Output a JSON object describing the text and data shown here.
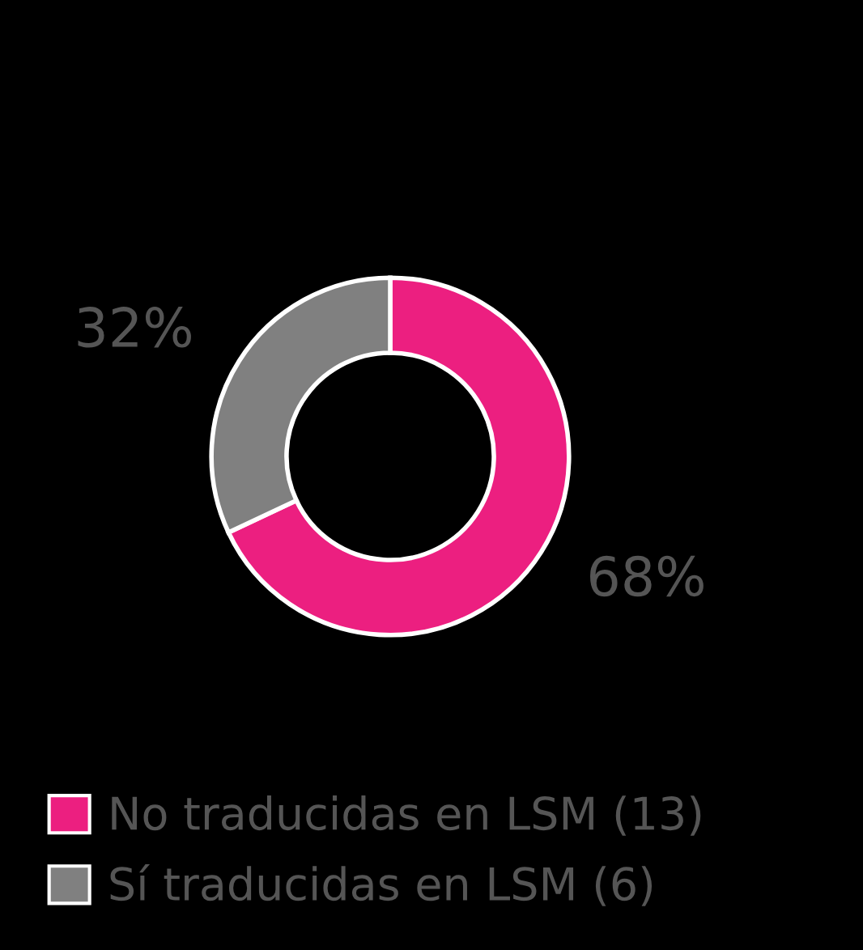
{
  "chart_data": {
    "type": "donut",
    "categories": [
      "No traducidas en LSM (13)",
      "Sí traducidas en LSM (6)"
    ],
    "values": [
      68,
      32
    ],
    "colors": [
      "#ec1f80",
      "#808080"
    ],
    "value_labels": [
      "68%",
      "32%"
    ],
    "legend": "bottom"
  }
}
